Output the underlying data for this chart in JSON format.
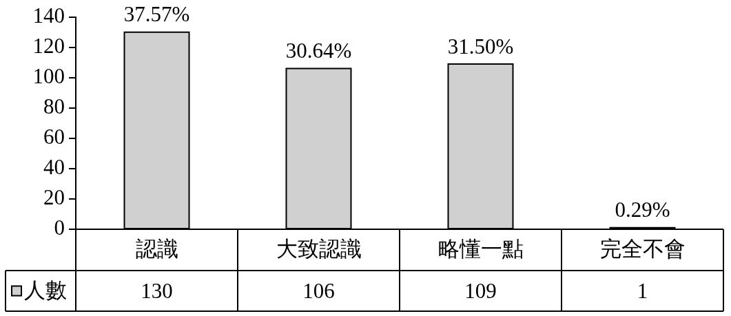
{
  "chart_data": {
    "type": "bar",
    "categories": [
      "認識",
      "大致認識",
      "略懂一點",
      "完全不會"
    ],
    "series": [
      {
        "name": "人數",
        "color": "#d0d0d0",
        "values": [
          130,
          106,
          109,
          1
        ]
      }
    ],
    "annotations": [
      {
        "text": "37.57%",
        "x": "認識",
        "y": 130
      },
      {
        "text": "30.64%",
        "x": "大致認識",
        "y": 106
      },
      {
        "text": "31.50%",
        "x": "略懂一點",
        "y": 109
      },
      {
        "text": "0.29%",
        "x": "完全不會",
        "y": 1
      }
    ],
    "ylim": [
      0,
      140
    ],
    "yticks": [
      0,
      20,
      40,
      60,
      80,
      100,
      120,
      140
    ],
    "grid": false,
    "legend": "bottom left",
    "data_labels": true
  }
}
